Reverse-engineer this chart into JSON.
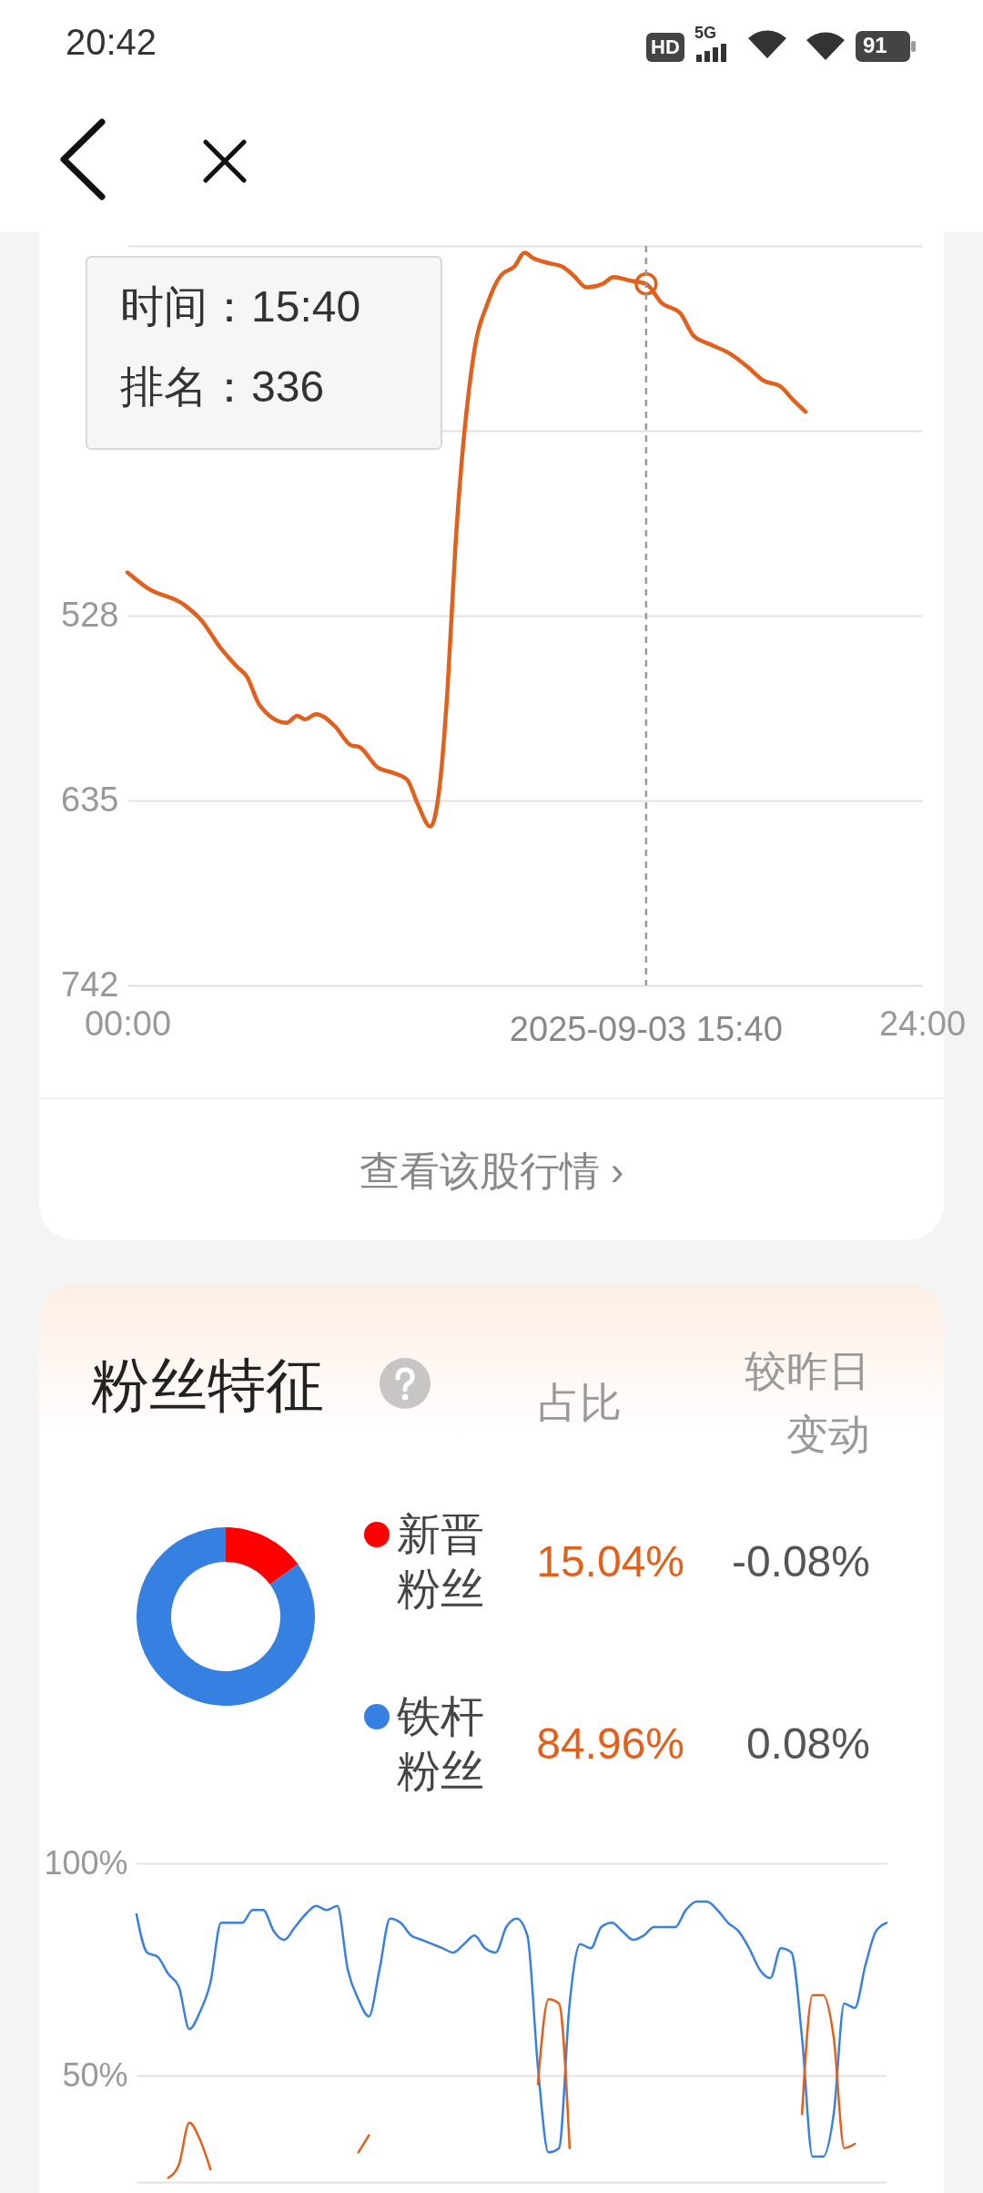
{
  "chart_data": [
    {
      "type": "other",
      "annotations": [
        "20:42",
        "HD",
        "5G",
        "91"
      ]
    },
    {
      "type": "line",
      "xlim": [
        "2025-09-03T00:00",
        "2025-09-04T00:00"
      ],
      "xticks": [
        {
          "value": "2025-09-03T00:00",
          "label": "00:00"
        },
        {
          "value": "2025-09-04T00:00",
          "label": "24:00"
        }
      ],
      "ylim": [
        742,
        314
      ],
      "yticks": [
        742,
        635,
        528,
        {
          "value": 421,
          "label": null
        },
        {
          "value": 314,
          "label": null
        }
      ],
      "grid": "y",
      "series": [
        {
          "type": "line",
          "color": "#e0601c",
          "x": [
            "2025-09-03T00:00",
            "2025-09-03T00:36",
            "2025-09-03T01:44",
            "2025-09-03T02:12",
            "2025-09-03T02:52",
            "2025-09-03T03:20",
            "2025-09-03T03:36",
            "2025-09-03T04:00",
            "2025-09-03T04:48",
            "2025-09-03T05:08",
            "2025-09-03T05:22",
            "2025-09-03T05:42",
            "2025-09-03T06:16",
            "2025-09-03T06:45",
            "2025-09-03T07:00",
            "2025-09-03T07:34",
            "2025-09-03T08:02",
            "2025-09-03T08:27",
            "2025-09-03T08:46",
            "2025-09-03T09:09",
            "2025-09-03T09:25",
            "2025-09-03T09:40",
            "2025-09-03T09:54",
            "2025-09-03T10:28",
            "2025-09-03T10:53",
            "2025-09-03T11:17",
            "2025-09-03T11:41",
            "2025-09-03T12:00",
            "2025-09-03T12:15",
            "2025-09-03T12:44",
            "2025-09-03T13:08",
            "2025-09-03T13:28",
            "2025-09-03T13:52",
            "2025-09-03T14:21",
            "2025-09-03T14:41",
            "2025-09-03T15:10",
            "2025-09-03T15:40",
            "2025-09-03T16:08",
            "2025-09-03T16:42",
            "2025-09-03T17:06",
            "2025-09-03T17:36",
            "2025-09-03T18:10",
            "2025-09-03T18:44",
            "2025-09-03T19:13",
            "2025-09-03T19:42",
            "2025-09-03T20:06",
            "2025-09-03T20:29"
          ],
          "values": [
            503,
            512,
            522,
            530,
            548,
            558,
            563,
            580,
            590,
            586,
            588,
            585,
            592,
            603,
            604,
            616,
            619,
            623,
            637,
            650,
            629,
            571,
            490,
            376,
            347,
            331,
            326,
            318,
            321,
            324,
            326,
            331,
            338,
            336,
            332,
            334,
            336,
            347,
            353,
            366,
            371,
            376,
            384,
            392,
            395,
            403,
            410
          ]
        },
        {
          "type": "scatter",
          "color": "#e0601c",
          "marker": "circle",
          "x": [
            "2025-09-03T15:40"
          ],
          "values": [
            336
          ]
        }
      ],
      "ref_lines": [
        {
          "axis": "x",
          "value": "2025-09-03T15:40",
          "label": "2025-09-03 15:40",
          "line_style": "dashed",
          "color": "#999999"
        }
      ],
      "annotations": [
        "时间：15:40",
        "排名：336",
        "查看该股行情 ›"
      ]
    },
    {
      "type": "donut",
      "title": "粉丝特征",
      "categories": [
        "新晋粉丝",
        "铁杆粉丝"
      ],
      "values": [
        15.04,
        84.96
      ],
      "colors": [
        "#ff0000",
        "#3580e0"
      ],
      "value_labels": [
        "15.04%",
        "84.96%"
      ],
      "legend": "right",
      "annotations": [
        "占比",
        "较昨日变动",
        "-0.08%",
        "0.08%"
      ]
    },
    {
      "type": "line",
      "categories": [
        null,
        null,
        null,
        null,
        null,
        null,
        null,
        null,
        null,
        null,
        null,
        null,
        null,
        null,
        null,
        null,
        null,
        null,
        null,
        null,
        null,
        null,
        null,
        null,
        null,
        null,
        null,
        null,
        null,
        null,
        null,
        null,
        null,
        null,
        null,
        null,
        null,
        null,
        null,
        null,
        null,
        null,
        null,
        null,
        null,
        null,
        null,
        null,
        null,
        null,
        null,
        null,
        null,
        null,
        null,
        null,
        null,
        null,
        null,
        null,
        null,
        null,
        null,
        null,
        null,
        null,
        null,
        null,
        null,
        null,
        null,
        null
      ],
      "ylim": [
        25,
        100
      ],
      "yticks": [
        {
          "value": 100,
          "label": "100%"
        },
        {
          "value": 50,
          "label": "50%"
        }
      ],
      "grid": "y",
      "tick_labels": "y",
      "series": [
        {
          "type": "line",
          "color": "#3a80dd",
          "values": [
            88,
            79,
            78,
            74,
            71,
            61,
            65,
            72,
            86,
            86,
            86,
            89,
            89,
            84,
            82,
            85,
            88,
            90,
            89,
            90,
            75,
            68,
            64,
            75,
            87,
            86,
            83,
            82,
            81,
            80,
            79,
            81,
            83,
            80,
            79,
            85,
            87,
            83,
            52,
            32,
            33,
            67,
            81,
            80,
            85,
            86,
            84,
            82,
            83,
            85,
            85,
            85,
            89,
            91,
            91,
            89,
            86,
            84,
            80,
            75,
            73,
            80,
            79,
            59,
            31,
            31,
            41,
            67,
            66,
            76,
            84,
            86
          ]
        },
        {
          "type": "line",
          "color": "#e0601c",
          "values": [
            null,
            null,
            null,
            26,
            29,
            39,
            35,
            28,
            null,
            null,
            null,
            null,
            null,
            null,
            null,
            null,
            null,
            null,
            null,
            null,
            null,
            32,
            36,
            null,
            null,
            null,
            null,
            null,
            null,
            null,
            null,
            null,
            null,
            null,
            null,
            null,
            null,
            null,
            48,
            68,
            67,
            33,
            null,
            null,
            null,
            null,
            null,
            null,
            null,
            null,
            null,
            null,
            null,
            null,
            null,
            null,
            null,
            null,
            null,
            null,
            null,
            null,
            null,
            41,
            69,
            69,
            59,
            33,
            34,
            null,
            null,
            null
          ]
        }
      ]
    }
  ]
}
